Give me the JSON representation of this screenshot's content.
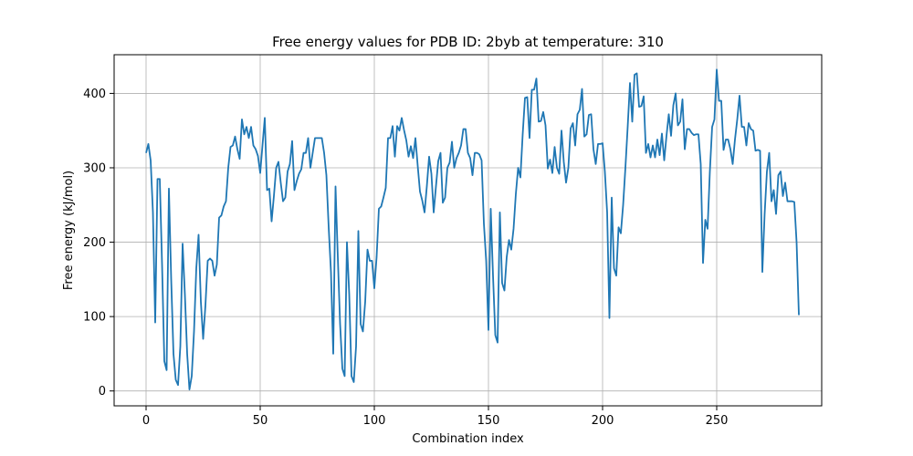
{
  "chart_data": {
    "type": "line",
    "title": "Free energy values for PDB ID: 2byb at temperature: 310",
    "xlabel": "Combination index",
    "ylabel": "Free energy (kJ/mol)",
    "xlim": [
      -14,
      296
    ],
    "ylim": [
      -20,
      452
    ],
    "xticks": [
      0,
      50,
      100,
      150,
      200,
      250
    ],
    "yticks": [
      0,
      100,
      200,
      300,
      400
    ],
    "grid": true,
    "color": "#1f77b4",
    "series": [
      {
        "y": [
          320,
          332,
          310,
          240,
          92,
          285,
          285,
          170,
          40,
          28,
          272,
          150,
          50,
          15,
          8,
          60,
          198,
          130,
          50,
          2,
          20,
          80,
          165,
          210,
          120,
          70,
          115,
          175,
          178,
          175,
          155,
          170,
          233,
          236,
          248,
          255,
          300,
          328,
          330,
          342,
          325,
          312,
          365,
          345,
          355,
          340,
          355,
          330,
          325,
          316,
          293,
          330,
          367,
          270,
          272,
          228,
          262,
          300,
          308,
          280,
          255,
          260,
          295,
          305,
          336,
          270,
          282,
          292,
          298,
          320,
          320,
          340,
          300,
          320,
          340,
          340,
          340,
          340,
          320,
          290,
          220,
          160,
          50,
          275,
          180,
          90,
          30,
          20,
          200,
          130,
          20,
          12,
          60,
          215,
          90,
          80,
          120,
          190,
          175,
          175,
          138,
          180,
          245,
          248,
          260,
          273,
          340,
          340,
          356,
          315,
          356,
          350,
          367,
          351,
          337,
          315,
          329,
          313,
          340,
          303,
          268,
          256,
          240,
          275,
          315,
          292,
          240,
          275,
          309,
          320,
          253,
          260,
          300,
          307,
          335,
          300,
          313,
          320,
          330,
          352,
          352,
          320,
          313,
          290,
          320,
          320,
          318,
          310,
          225,
          175,
          82,
          245,
          155,
          75,
          65,
          240,
          145,
          135,
          180,
          203,
          190,
          218,
          265,
          300,
          287,
          345,
          394,
          395,
          340,
          405,
          405,
          420,
          362,
          363,
          375,
          357,
          299,
          311,
          293,
          328,
          300,
          292,
          350,
          308,
          280,
          300,
          353,
          360,
          330,
          372,
          378,
          406,
          342,
          345,
          371,
          372,
          325,
          305,
          332,
          332,
          333,
          295,
          240,
          98,
          260,
          165,
          155,
          220,
          212,
          250,
          300,
          355,
          414,
          362,
          425,
          427,
          382,
          383,
          396,
          320,
          332,
          314,
          330,
          314,
          338,
          317,
          346,
          310,
          343,
          372,
          343,
          384,
          400,
          357,
          362,
          392,
          325,
          352,
          352,
          347,
          344,
          345,
          345,
          305,
          172,
          230,
          218,
          295,
          355,
          365,
          432,
          390,
          390,
          324,
          338,
          338,
          325,
          305,
          338,
          365,
          397,
          355,
          355,
          330,
          360,
          352,
          350,
          323,
          324,
          323,
          160,
          238,
          295,
          320,
          255,
          270,
          238,
          290,
          295,
          262,
          280,
          255,
          255,
          255,
          254,
          200,
          102
        ]
      }
    ]
  }
}
